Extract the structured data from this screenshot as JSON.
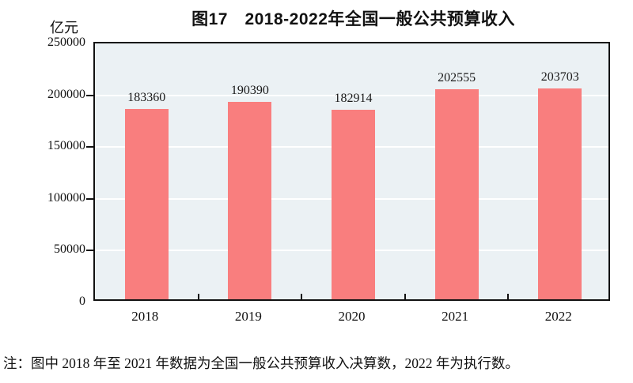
{
  "chart": {
    "title_display": "图17　2018-2022年全国一般公共预算收入",
    "figure_label": "图17",
    "title": "2018-2022年全国一般公共预算收入",
    "unit_label": "亿元",
    "note": "注：图中 2018 年至 2021 年数据为全国一般公共预算收入决算数，2022 年为执行数。"
  },
  "chart_data": {
    "type": "bar",
    "title": "图17 2018-2022年全国一般公共预算收入",
    "categories": [
      "2018",
      "2019",
      "2020",
      "2021",
      "2022"
    ],
    "values": [
      183360,
      190390,
      182914,
      202555,
      203703
    ],
    "ylabel": "亿元",
    "xlabel": "",
    "ylim": [
      0,
      250000
    ],
    "yticks": [
      0,
      50000,
      100000,
      150000,
      200000,
      250000
    ],
    "grid": true,
    "legend": "none",
    "data_labels": true,
    "colors": {
      "bar_fill": "#F97E7E",
      "plot_background": "#EBF1F4",
      "gridline": "#FFFFFF",
      "frame": "#111111",
      "text": "#111111"
    }
  }
}
